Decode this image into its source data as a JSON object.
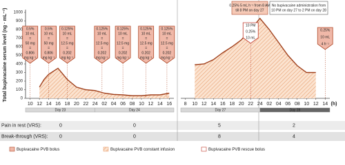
{
  "chart_data": [
    {
      "type": "line",
      "ylabel": "Total bupivacaine serum level (ng · mL⁻¹)",
      "x": [
        2,
        3,
        4,
        6,
        8,
        10,
        12,
        14,
        16,
        18,
        20,
        22,
        24,
        26,
        28,
        30
      ],
      "values": [
        130,
        220,
        280,
        350,
        220,
        130,
        100,
        90,
        60,
        45,
        40,
        30,
        30,
        40,
        40,
        60
      ],
      "color": "#a0401c",
      "ylim": [
        0,
        1000
      ],
      "yticks": [
        0,
        100,
        200,
        300,
        400,
        500,
        600,
        700,
        800,
        900,
        1000
      ],
      "xlim": [
        -1,
        31
      ],
      "xticks": [
        {
          "value": 0,
          "label": "10"
        },
        {
          "value": 2,
          "label": "12"
        },
        {
          "value": 4,
          "label": "14"
        },
        {
          "value": 6,
          "label": "16"
        },
        {
          "value": 8,
          "label": "18"
        },
        {
          "value": 10,
          "label": "20"
        },
        {
          "value": 12,
          "label": "22"
        },
        {
          "value": 14,
          "label": "24"
        },
        {
          "value": 16,
          "label": "02"
        },
        {
          "value": 18,
          "label": "04"
        },
        {
          "value": 20,
          "label": "06"
        },
        {
          "value": 22,
          "label": "08"
        },
        {
          "value": 24,
          "label": "10"
        },
        {
          "value": 26,
          "label": "12"
        },
        {
          "value": 28,
          "label": "14"
        },
        {
          "value": 30,
          "label": "16"
        }
      ],
      "days": [
        "Day 23",
        "Day 24"
      ],
      "boluses": [
        {
          "x": 0,
          "lines": [
            "0.5%",
            "10 mL",
            "=",
            "50 mg",
            "=",
            "0.806",
            "mg kg⁻¹"
          ]
        },
        {
          "x": 4,
          "lines": [
            "0.5%",
            "10 mL",
            "=",
            "50 mg",
            "=",
            "0.806",
            "mg kg⁻¹"
          ]
        },
        {
          "x": 8,
          "lines": [
            "0.125%",
            "10 mL",
            "=",
            "12.5 mg",
            "=",
            "0.202",
            "mg kg⁻¹"
          ]
        },
        {
          "x": 15.5,
          "lines": [
            "0.125%",
            "10 mL",
            "=",
            "12.5 mg",
            "=",
            "0.202",
            "mg kg⁻¹"
          ]
        },
        {
          "x": 20,
          "lines": [
            "0.125%",
            "10 mL",
            "=",
            "12.5 mg",
            "=",
            "0.202",
            "mg kg⁻¹"
          ]
        },
        {
          "x": 25,
          "lines": [
            "0.125%",
            "10 mL",
            "=",
            "12.5 mg",
            "=",
            "0.202",
            "mg kg⁻¹"
          ]
        },
        {
          "x": 29.5,
          "lines": [
            "0.125%",
            "10 mL",
            "=",
            "12.5 mg",
            "=",
            "0.202",
            "mg kg⁻¹"
          ]
        }
      ]
    },
    {
      "type": "line",
      "xlabel": "(h)",
      "x": [
        2,
        4,
        6,
        8,
        10,
        12,
        14,
        16,
        18,
        20,
        22,
        24,
        26,
        28
      ],
      "values": [
        390,
        400,
        450,
        530,
        600,
        680,
        800,
        930,
        800,
        650,
        500,
        380,
        300,
        300
      ],
      "color": "#a0401c",
      "ylim": [
        0,
        1000
      ],
      "xlim": [
        -1,
        31
      ],
      "xticks": [
        {
          "value": 0,
          "label": "8"
        },
        {
          "value": 2,
          "label": "10"
        },
        {
          "value": 4,
          "label": "12"
        },
        {
          "value": 6,
          "label": "14"
        },
        {
          "value": 8,
          "label": "16"
        },
        {
          "value": 10,
          "label": "18"
        },
        {
          "value": 12,
          "label": "20"
        },
        {
          "value": 14,
          "label": "22"
        },
        {
          "value": 16,
          "label": "24"
        },
        {
          "value": 18,
          "label": "02"
        },
        {
          "value": 20,
          "label": "04"
        },
        {
          "value": 22,
          "label": "06"
        },
        {
          "value": 24,
          "label": "08"
        },
        {
          "value": 26,
          "label": "10"
        },
        {
          "value": 28,
          "label": "12"
        },
        {
          "value": 30,
          "label": "14"
        }
      ],
      "days": [
        "Day 27",
        "Day 28"
      ],
      "notes": [
        [
          "0.25% 5 mL h⁻¹ from 8 AM",
          "till 8 PM on day 27"
        ],
        [
          "No bupivacaine administration from",
          "10 PM on day 27 to 2 PM on day 28"
        ]
      ],
      "rescue": {
        "x": 14,
        "lines": [
          "10 PM",
          "0.25%",
          "10 mL"
        ]
      },
      "boluses": [
        {
          "x": 30,
          "lines": [
            "0.25%",
            "10 mL",
            "4 h⁻¹"
          ]
        }
      ]
    }
  ],
  "table": {
    "rows": [
      [
        "Pain in rest (VRS):",
        "0",
        "0",
        "5",
        "2"
      ],
      [
        "Break-through (VRS):",
        "0",
        "0",
        "8",
        "4"
      ]
    ]
  },
  "legend": [
    "Bupivacaine PVB bolus",
    "Bupivacaine PVB constant infusion",
    "Bupivacaine PVB rescue bolus"
  ]
}
